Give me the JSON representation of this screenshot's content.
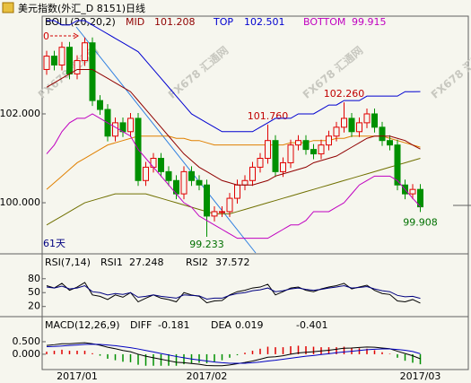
{
  "watermark": "FX678 汇通网",
  "chart_data": [
    {
      "type": "candlestick",
      "title": "美元指数(外汇_D 8151)日线",
      "indicator": "BOLL(20,20,2)",
      "categories": [
        null,
        null,
        null,
        null,
        "2017/01",
        null,
        null,
        null,
        null,
        null,
        null,
        null,
        null,
        null,
        null,
        null,
        null,
        null,
        null,
        null,
        null,
        "2017/02",
        null,
        null,
        null,
        null,
        null,
        null,
        null,
        null,
        null,
        null,
        null,
        null,
        null,
        null,
        null,
        null,
        null,
        null,
        null,
        null,
        null,
        null,
        null,
        null,
        null,
        null,
        null,
        "2017/03"
      ],
      "open": [
        103.0,
        103.3,
        103.1,
        103.5,
        102.9,
        103.2,
        103.6,
        102.3,
        102.1,
        101.5,
        101.8,
        101.6,
        101.9,
        100.5,
        100.8,
        101.0,
        100.7,
        100.5,
        100.2,
        100.7,
        100.5,
        100.4,
        99.7,
        99.8,
        99.8,
        100.1,
        100.4,
        100.5,
        100.8,
        101.0,
        101.4,
        100.7,
        100.9,
        101.3,
        101.4,
        101.2,
        101.1,
        101.3,
        101.5,
        101.7,
        101.9,
        101.6,
        101.8,
        102.0,
        101.7,
        101.4,
        101.3,
        100.4,
        100.2,
        100.3
      ],
      "high": [
        103.42,
        103.42,
        103.62,
        103.62,
        103.32,
        103.72,
        103.72,
        102.42,
        102.22,
        101.92,
        101.92,
        102.02,
        102.02,
        100.92,
        101.12,
        101.12,
        100.82,
        100.62,
        100.82,
        100.82,
        100.62,
        100.52,
        99.92,
        99.92,
        100.22,
        100.52,
        100.62,
        100.92,
        101.12,
        101.76,
        101.52,
        101.02,
        101.42,
        101.52,
        101.52,
        101.32,
        101.42,
        101.62,
        101.82,
        102.26,
        102.02,
        101.92,
        102.12,
        102.12,
        101.82,
        101.52,
        101.42,
        100.52,
        100.42,
        100.42
      ],
      "low": [
        102.88,
        102.98,
        102.98,
        102.78,
        102.78,
        103.08,
        102.18,
        101.98,
        101.38,
        101.38,
        101.48,
        101.48,
        100.38,
        100.38,
        100.68,
        100.58,
        100.38,
        100.08,
        100.08,
        100.38,
        100.28,
        99.233,
        99.58,
        99.68,
        99.68,
        99.98,
        100.28,
        100.38,
        100.68,
        100.88,
        100.58,
        100.58,
        100.78,
        101.18,
        101.08,
        100.98,
        100.98,
        101.18,
        101.38,
        101.58,
        101.48,
        101.48,
        101.68,
        101.58,
        101.28,
        101.18,
        100.28,
        100.08,
        100.08,
        99.79
      ],
      "close": [
        103.3,
        103.1,
        103.5,
        102.9,
        103.2,
        103.6,
        102.3,
        102.1,
        101.5,
        101.8,
        101.6,
        101.9,
        100.5,
        100.8,
        101.0,
        100.7,
        100.5,
        100.2,
        100.7,
        100.5,
        100.4,
        99.7,
        99.8,
        99.8,
        100.1,
        100.4,
        100.5,
        100.8,
        101.0,
        101.4,
        100.7,
        100.9,
        101.3,
        101.4,
        101.2,
        101.1,
        101.3,
        101.5,
        101.7,
        101.9,
        101.6,
        101.8,
        102.0,
        101.7,
        101.4,
        101.3,
        100.4,
        100.2,
        100.3,
        99.908
      ],
      "up_color": "#e00000",
      "down_color": "#009000",
      "series": [
        {
          "name": "MID",
          "color": "#900000",
          "values": [
            102.6,
            102.7,
            102.8,
            102.9,
            103.0,
            103.0,
            103.0,
            102.9,
            102.8,
            102.7,
            102.6,
            102.5,
            102.3,
            102.1,
            101.9,
            101.7,
            101.5,
            101.3,
            101.1,
            100.95,
            100.8,
            100.7,
            100.6,
            100.5,
            100.45,
            100.4,
            100.4,
            100.4,
            100.45,
            100.5,
            100.6,
            100.65,
            100.7,
            100.75,
            100.8,
            100.9,
            100.95,
            101.0,
            101.05,
            101.15,
            101.25,
            101.35,
            101.45,
            101.5,
            101.5,
            101.5,
            101.45,
            101.4,
            101.3,
            101.208
          ]
        },
        {
          "name": "TOP",
          "color": "#0000d0",
          "values": [
            104.1,
            104.1,
            104.0,
            104.0,
            104.1,
            104.1,
            104.0,
            103.9,
            103.8,
            103.7,
            103.6,
            103.5,
            103.4,
            103.2,
            103.0,
            102.8,
            102.6,
            102.4,
            102.2,
            102.0,
            101.9,
            101.8,
            101.7,
            101.6,
            101.6,
            101.6,
            101.6,
            101.6,
            101.7,
            101.8,
            101.9,
            101.9,
            101.9,
            102.0,
            102.0,
            102.0,
            102.1,
            102.2,
            102.2,
            102.3,
            102.3,
            102.3,
            102.4,
            102.4,
            102.4,
            102.4,
            102.4,
            102.5,
            102.5,
            102.501
          ]
        },
        {
          "name": "BOTTOM",
          "color": "#c000c0",
          "values": [
            101.1,
            101.3,
            101.6,
            101.8,
            101.9,
            101.9,
            102.0,
            101.9,
            101.8,
            101.7,
            101.6,
            101.5,
            101.2,
            101.0,
            100.8,
            100.6,
            100.4,
            100.2,
            100.0,
            99.9,
            99.7,
            99.6,
            99.5,
            99.4,
            99.3,
            99.2,
            99.2,
            99.2,
            99.2,
            99.2,
            99.3,
            99.4,
            99.5,
            99.5,
            99.6,
            99.8,
            99.8,
            99.8,
            99.9,
            100.0,
            100.2,
            100.4,
            100.5,
            100.6,
            100.6,
            100.6,
            100.5,
            100.3,
            100.1,
            99.915
          ]
        }
      ],
      "overlays": [
        {
          "color": "#e08000",
          "values": [
            100.3,
            100.45,
            100.6,
            100.75,
            100.9,
            101.0,
            101.1,
            101.2,
            101.3,
            101.35,
            101.4,
            101.45,
            101.5,
            101.5,
            101.5,
            101.5,
            101.5,
            101.45,
            101.45,
            101.4,
            101.4,
            101.35,
            101.3,
            101.3,
            101.3,
            101.3,
            101.3,
            101.3,
            101.3,
            101.3,
            101.3,
            101.3,
            101.35,
            101.35,
            101.35,
            101.4,
            101.4,
            101.4,
            101.45,
            101.45,
            101.5,
            101.5,
            101.5,
            101.5,
            101.5,
            101.45,
            101.4,
            101.35,
            101.3,
            101.25
          ]
        },
        {
          "color": "#707000",
          "values": [
            99.5,
            99.6,
            99.7,
            99.8,
            99.9,
            100.0,
            100.05,
            100.1,
            100.15,
            100.2,
            100.2,
            100.2,
            100.2,
            100.2,
            100.15,
            100.1,
            100.05,
            100.0,
            99.95,
            99.9,
            99.85,
            99.8,
            99.75,
            99.75,
            99.75,
            99.8,
            99.85,
            99.9,
            99.95,
            100.0,
            100.05,
            100.1,
            100.15,
            100.2,
            100.25,
            100.3,
            100.35,
            100.4,
            100.45,
            100.5,
            100.55,
            100.6,
            100.65,
            100.7,
            100.75,
            100.8,
            100.85,
            100.9,
            100.95,
            101.0
          ]
        }
      ],
      "annotations": [
        {
          "value": 101.76,
          "label": "101.760"
        },
        {
          "value": 102.26,
          "label": "102.260"
        },
        {
          "value": 99.233,
          "label": "99.233"
        }
      ],
      "ylim": [
        98.87,
        104.16
      ],
      "yticks": [
        {
          "value": 100,
          "label": "100.000"
        },
        {
          "value": 102,
          "label": "102.000"
        }
      ],
      "period_label": "61天",
      "marker_label": "0"
    },
    {
      "type": "line",
      "indicator": "RSI(7,14)",
      "series": [
        {
          "name": "RSI1",
          "color": "#000000",
          "values": [
            65,
            60,
            70,
            55,
            62,
            72,
            45,
            42,
            35,
            45,
            40,
            50,
            30,
            38,
            45,
            38,
            35,
            30,
            50,
            45,
            42,
            28,
            32,
            33,
            45,
            52,
            55,
            60,
            62,
            68,
            45,
            52,
            60,
            62,
            55,
            52,
            58,
            62,
            65,
            70,
            58,
            62,
            66,
            55,
            48,
            46,
            32,
            30,
            35,
            27.248
          ]
        },
        {
          "name": "RSI2",
          "color": "#000080",
          "values": [
            62,
            60,
            64,
            58,
            60,
            65,
            52,
            50,
            45,
            48,
            46,
            50,
            40,
            42,
            45,
            42,
            40,
            38,
            45,
            44,
            43,
            36,
            38,
            38,
            44,
            48,
            50,
            54,
            56,
            60,
            52,
            54,
            58,
            60,
            57,
            55,
            57,
            60,
            62,
            65,
            60,
            61,
            63,
            58,
            54,
            52,
            44,
            41,
            42,
            37.572
          ]
        }
      ],
      "ylim": [
        0,
        130
      ],
      "yticks": [
        20,
        50,
        80
      ]
    },
    {
      "type": "macd",
      "indicator": "MACD(12,26,9)",
      "series": [
        {
          "name": "DIFF",
          "color": "#000000",
          "values": [
            0.35,
            0.38,
            0.42,
            0.42,
            0.44,
            0.46,
            0.42,
            0.36,
            0.28,
            0.22,
            0.15,
            0.1,
            0.0,
            -0.08,
            -0.14,
            -0.2,
            -0.26,
            -0.32,
            -0.34,
            -0.37,
            -0.4,
            -0.45,
            -0.46,
            -0.46,
            -0.43,
            -0.38,
            -0.33,
            -0.27,
            -0.2,
            -0.12,
            -0.1,
            -0.06,
            0.0,
            0.05,
            0.08,
            0.1,
            0.13,
            0.16,
            0.2,
            0.24,
            0.25,
            0.27,
            0.29,
            0.28,
            0.25,
            0.22,
            0.12,
            0.03,
            -0.06,
            -0.181
          ]
        },
        {
          "name": "DEA",
          "color": "#0000c0",
          "values": [
            0.3,
            0.31,
            0.33,
            0.35,
            0.37,
            0.39,
            0.4,
            0.39,
            0.37,
            0.34,
            0.3,
            0.26,
            0.21,
            0.15,
            0.09,
            0.03,
            -0.03,
            -0.09,
            -0.14,
            -0.19,
            -0.23,
            -0.27,
            -0.31,
            -0.34,
            -0.36,
            -0.36,
            -0.36,
            -0.34,
            -0.31,
            -0.27,
            -0.24,
            -0.2,
            -0.16,
            -0.12,
            -0.08,
            -0.05,
            -0.01,
            0.02,
            0.06,
            0.09,
            0.12,
            0.15,
            0.18,
            0.2,
            0.21,
            0.21,
            0.19,
            0.16,
            0.11,
            0.019
          ]
        }
      ],
      "histogram": [
        0.1,
        0.14,
        0.18,
        0.14,
        0.14,
        0.14,
        0.04,
        -0.06,
        -0.18,
        -0.24,
        -0.3,
        -0.32,
        -0.42,
        -0.46,
        -0.46,
        -0.46,
        -0.46,
        -0.46,
        -0.4,
        -0.36,
        -0.34,
        -0.36,
        -0.3,
        -0.24,
        -0.14,
        -0.04,
        0.06,
        0.14,
        0.22,
        0.3,
        0.28,
        0.28,
        0.32,
        0.34,
        0.32,
        0.3,
        0.28,
        0.28,
        0.28,
        0.3,
        0.26,
        0.24,
        0.22,
        0.16,
        0.08,
        0.02,
        -0.14,
        -0.26,
        -0.34,
        -0.401
      ],
      "up_color": "#e00000",
      "down_color": "#009000",
      "ylim": [
        -0.54,
        1.43
      ],
      "yticks": [
        {
          "value": 0,
          "label": "0.000"
        },
        {
          "value": 0.5,
          "label": "0.500"
        }
      ]
    }
  ]
}
